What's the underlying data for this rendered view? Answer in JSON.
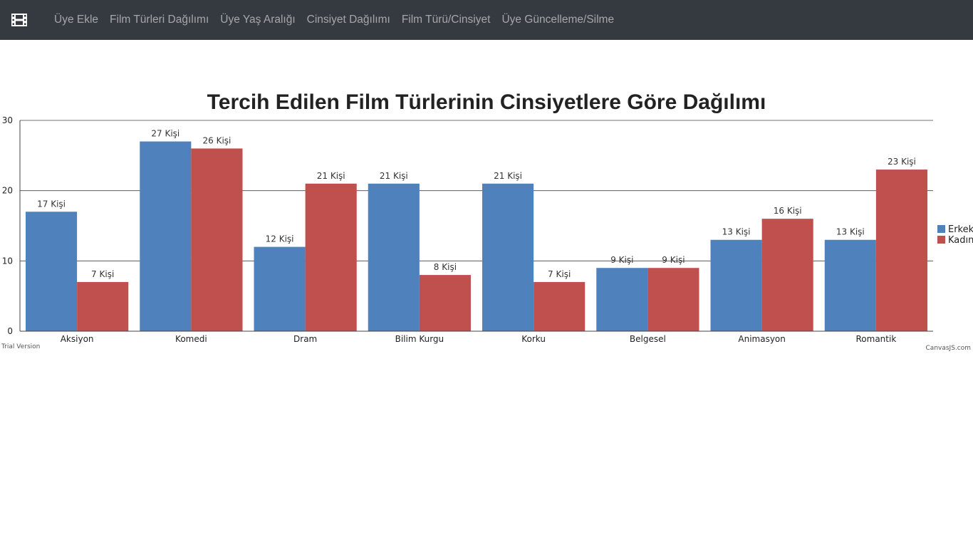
{
  "navbar": {
    "brand_icon": "film-icon",
    "links": [
      "Üye Ekle",
      "Film Türleri Dağılımı",
      "Üye Yaş Aralığı",
      "Cinsiyet Dağılımı",
      "Film Türü/Cinsiyet",
      "Üye Güncelleme/Silme"
    ]
  },
  "chart_data": {
    "type": "bar",
    "title": "Tercih Edilen Film Türlerinin Cinsiyetlere Göre Dağılımı",
    "categories": [
      "Aksiyon",
      "Komedi",
      "Dram",
      "Bilim Kurgu",
      "Korku",
      "Belgesel",
      "Animasyon",
      "Romantik"
    ],
    "series": [
      {
        "name": "Erkek",
        "values": [
          17,
          27,
          12,
          21,
          21,
          9,
          13,
          13
        ],
        "color": "#4f81bc"
      },
      {
        "name": "Kadın",
        "values": [
          7,
          26,
          21,
          8,
          7,
          9,
          16,
          23
        ],
        "color": "#c0504e"
      }
    ],
    "label_suffix": " Kişi",
    "ylim": [
      0,
      30
    ],
    "yticks": [
      0,
      10,
      20,
      30
    ],
    "grid": true,
    "legend": "right"
  },
  "credits": {
    "left": "Trial Version",
    "right": "CanvasJS.com"
  }
}
